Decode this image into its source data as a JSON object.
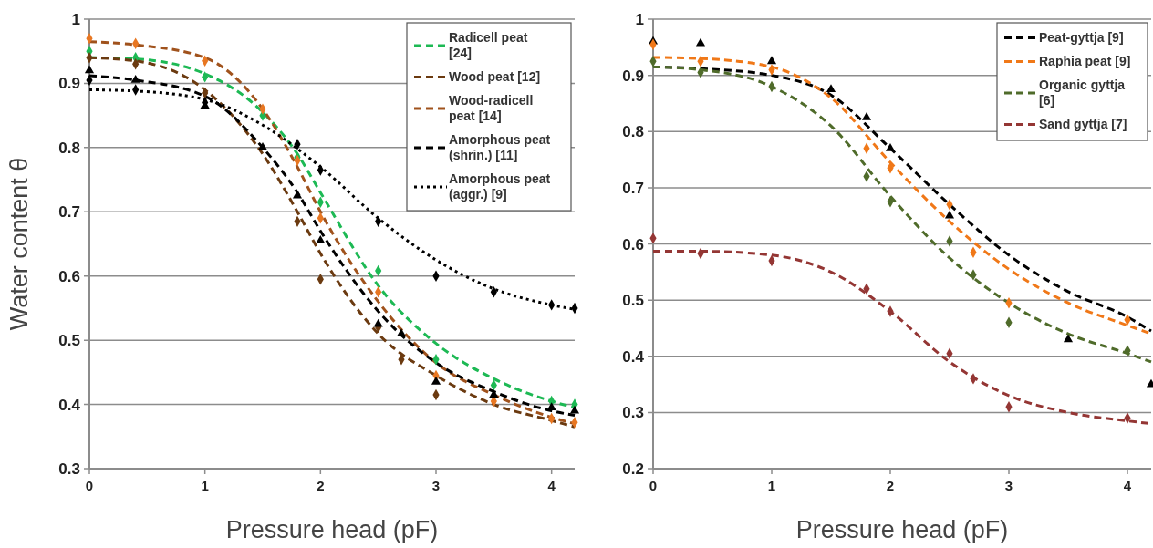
{
  "chart_data": [
    {
      "type": "line",
      "ylabel": "Water content θ",
      "xlabel": "Pressure head (pF)",
      "xlim": [
        0,
        4.2
      ],
      "xticks": [
        0,
        1,
        2,
        3,
        4
      ],
      "ylim": [
        0.3,
        1
      ],
      "yticks": [
        0.3,
        0.4,
        0.5,
        0.6,
        0.7,
        0.8,
        0.9,
        1
      ],
      "grid": "y",
      "legend": "top right",
      "series": [
        {
          "name": "Radicell peat [24]",
          "line_style": "dashed",
          "color": "#1db954",
          "x": [
            0,
            0.4,
            1,
            1.5,
            1.8,
            2,
            2.5,
            3,
            3.5,
            4,
            4.2
          ],
          "values": [
            0.94,
            0.938,
            0.915,
            0.855,
            0.79,
            0.73,
            0.585,
            0.495,
            0.44,
            0.405,
            0.395
          ]
        },
        {
          "name": "Wood peat [12]",
          "line_style": "dashed",
          "color": "#6b3a10",
          "x": [
            0,
            0.4,
            1,
            1.5,
            1.8,
            2,
            2.5,
            3,
            3.5,
            4,
            4.2
          ],
          "values": [
            0.94,
            0.935,
            0.89,
            0.79,
            0.7,
            0.635,
            0.51,
            0.445,
            0.4,
            0.375,
            0.365
          ]
        },
        {
          "name": "Wood-radicell peat [14]",
          "line_style": "dashed",
          "color": "#a0521c",
          "x": [
            0,
            0.4,
            1,
            1.5,
            1.8,
            2,
            2.5,
            3,
            3.5,
            4,
            4.2
          ],
          "values": [
            0.965,
            0.96,
            0.94,
            0.86,
            0.77,
            0.7,
            0.56,
            0.465,
            0.415,
            0.38,
            0.37
          ]
        },
        {
          "name": "Amorphous peat (shrin.) [11]",
          "line_style": "dashed",
          "color": "#000000",
          "x": [
            0,
            0.4,
            1,
            1.5,
            1.8,
            2,
            2.5,
            3,
            3.5,
            4,
            4.2
          ],
          "values": [
            0.912,
            0.905,
            0.88,
            0.8,
            0.73,
            0.67,
            0.545,
            0.465,
            0.42,
            0.39,
            0.383
          ]
        },
        {
          "name": "Amorphous peat (aggr.) [9]",
          "line_style": "dotted",
          "color": "#000000",
          "x": [
            0,
            0.4,
            1,
            1.5,
            2,
            2.5,
            3,
            3.5,
            4,
            4.2
          ],
          "values": [
            0.89,
            0.888,
            0.875,
            0.835,
            0.77,
            0.69,
            0.625,
            0.58,
            0.555,
            0.548
          ]
        },
        {
          "type": "scatter",
          "marker": "diamond",
          "color": "#1db954",
          "x": [
            0,
            0.4,
            1,
            1.5,
            1.8,
            2,
            2.5,
            3,
            3.5,
            4,
            4.2
          ],
          "values": [
            0.95,
            0.94,
            0.91,
            0.85,
            0.785,
            0.715,
            0.608,
            0.47,
            0.43,
            0.405,
            0.4
          ]
        },
        {
          "type": "scatter",
          "marker": "diamond",
          "color": "#6b3a10",
          "x": [
            0,
            0.4,
            1,
            1.8,
            2,
            2.5,
            2.7,
            3
          ],
          "values": [
            0.94,
            0.93,
            0.885,
            0.685,
            0.595,
            0.52,
            0.47,
            0.415
          ]
        },
        {
          "type": "scatter",
          "marker": "diamond",
          "color": "#e87722",
          "x": [
            0,
            0.4,
            1,
            1.5,
            1.8,
            2,
            2.5,
            3,
            3.5,
            4,
            4.2
          ],
          "values": [
            0.97,
            0.962,
            0.935,
            0.86,
            0.78,
            0.69,
            0.575,
            0.445,
            0.405,
            0.378,
            0.372
          ]
        },
        {
          "type": "scatter",
          "marker": "triangle",
          "color": "#000000",
          "x": [
            0,
            0.4,
            1,
            1.5,
            1.8,
            2,
            2.5,
            2.7,
            3,
            3.5,
            4,
            4.2
          ],
          "values": [
            0.92,
            0.905,
            0.865,
            0.8,
            0.725,
            0.655,
            0.525,
            0.51,
            0.435,
            0.415,
            0.395,
            0.39
          ]
        },
        {
          "type": "scatter",
          "marker": "diamond",
          "color": "#000000",
          "x": [
            0,
            0.4,
            1,
            1.8,
            2,
            2.5,
            3,
            3.5,
            4,
            4.2
          ],
          "values": [
            0.905,
            0.89,
            0.87,
            0.805,
            0.765,
            0.685,
            0.6,
            0.575,
            0.555,
            0.55
          ]
        }
      ]
    },
    {
      "type": "line",
      "xlabel": "Pressure head (pF)",
      "xlim": [
        0,
        4.2
      ],
      "xticks": [
        0,
        1,
        2,
        3,
        4
      ],
      "ylim": [
        0.2,
        1
      ],
      "yticks": [
        0.2,
        0.3,
        0.4,
        0.5,
        0.6,
        0.7,
        0.8,
        0.9,
        1
      ],
      "grid": "y",
      "legend": "top right",
      "series": [
        {
          "name": "Peat-gyttja [9]",
          "line_style": "dashed",
          "color": "#000000",
          "x": [
            0,
            0.4,
            1,
            1.5,
            2,
            2.5,
            3,
            3.5,
            4,
            4.2
          ],
          "values": [
            0.915,
            0.912,
            0.9,
            0.865,
            0.77,
            0.67,
            0.58,
            0.515,
            0.47,
            0.445
          ]
        },
        {
          "name": "Raphia peat [9]",
          "line_style": "dashed",
          "color": "#f07818",
          "x": [
            0,
            0.4,
            1,
            1.5,
            2,
            2.5,
            3,
            3.5,
            4,
            4.2
          ],
          "values": [
            0.932,
            0.93,
            0.915,
            0.86,
            0.745,
            0.64,
            0.555,
            0.495,
            0.455,
            0.44
          ]
        },
        {
          "name": "Organic gyttja [6]",
          "line_style": "dashed",
          "color": "#4f6b2a",
          "x": [
            0,
            0.4,
            1,
            1.5,
            2,
            2.5,
            3,
            3.5,
            4,
            4.2
          ],
          "values": [
            0.915,
            0.91,
            0.88,
            0.81,
            0.685,
            0.575,
            0.495,
            0.44,
            0.405,
            0.39
          ]
        },
        {
          "name": "Sand gyttja [7]",
          "line_style": "dashed",
          "color": "#943634",
          "x": [
            0,
            0.4,
            1,
            1.5,
            2,
            2.5,
            3,
            3.5,
            4,
            4.2
          ],
          "values": [
            0.587,
            0.587,
            0.58,
            0.55,
            0.48,
            0.39,
            0.33,
            0.3,
            0.285,
            0.28
          ]
        },
        {
          "type": "scatter",
          "marker": "triangle",
          "color": "#000000",
          "x": [
            0,
            0.4,
            1,
            1.5,
            1.8,
            2,
            2.5,
            3.5,
            4.2
          ],
          "values": [
            0.96,
            0.957,
            0.925,
            0.875,
            0.825,
            0.77,
            0.65,
            0.43,
            0.35
          ]
        },
        {
          "type": "scatter",
          "marker": "diamond",
          "color": "#f07818",
          "x": [
            0,
            0.4,
            1,
            1.8,
            2,
            2.5,
            2.7,
            3,
            4
          ],
          "values": [
            0.955,
            0.925,
            0.91,
            0.77,
            0.735,
            0.67,
            0.585,
            0.495,
            0.465
          ]
        },
        {
          "type": "scatter",
          "marker": "diamond",
          "color": "#4f6b2a",
          "x": [
            0,
            0.4,
            1,
            1.8,
            2,
            2.5,
            2.7,
            3,
            4
          ],
          "values": [
            0.925,
            0.905,
            0.88,
            0.72,
            0.675,
            0.605,
            0.545,
            0.46,
            0.41
          ]
        },
        {
          "type": "scatter",
          "marker": "diamond",
          "color": "#943634",
          "x": [
            0,
            0.4,
            1,
            1.8,
            2,
            2.5,
            2.7,
            3,
            4
          ],
          "values": [
            0.61,
            0.583,
            0.57,
            0.52,
            0.48,
            0.405,
            0.36,
            0.31,
            0.29
          ]
        }
      ]
    }
  ]
}
